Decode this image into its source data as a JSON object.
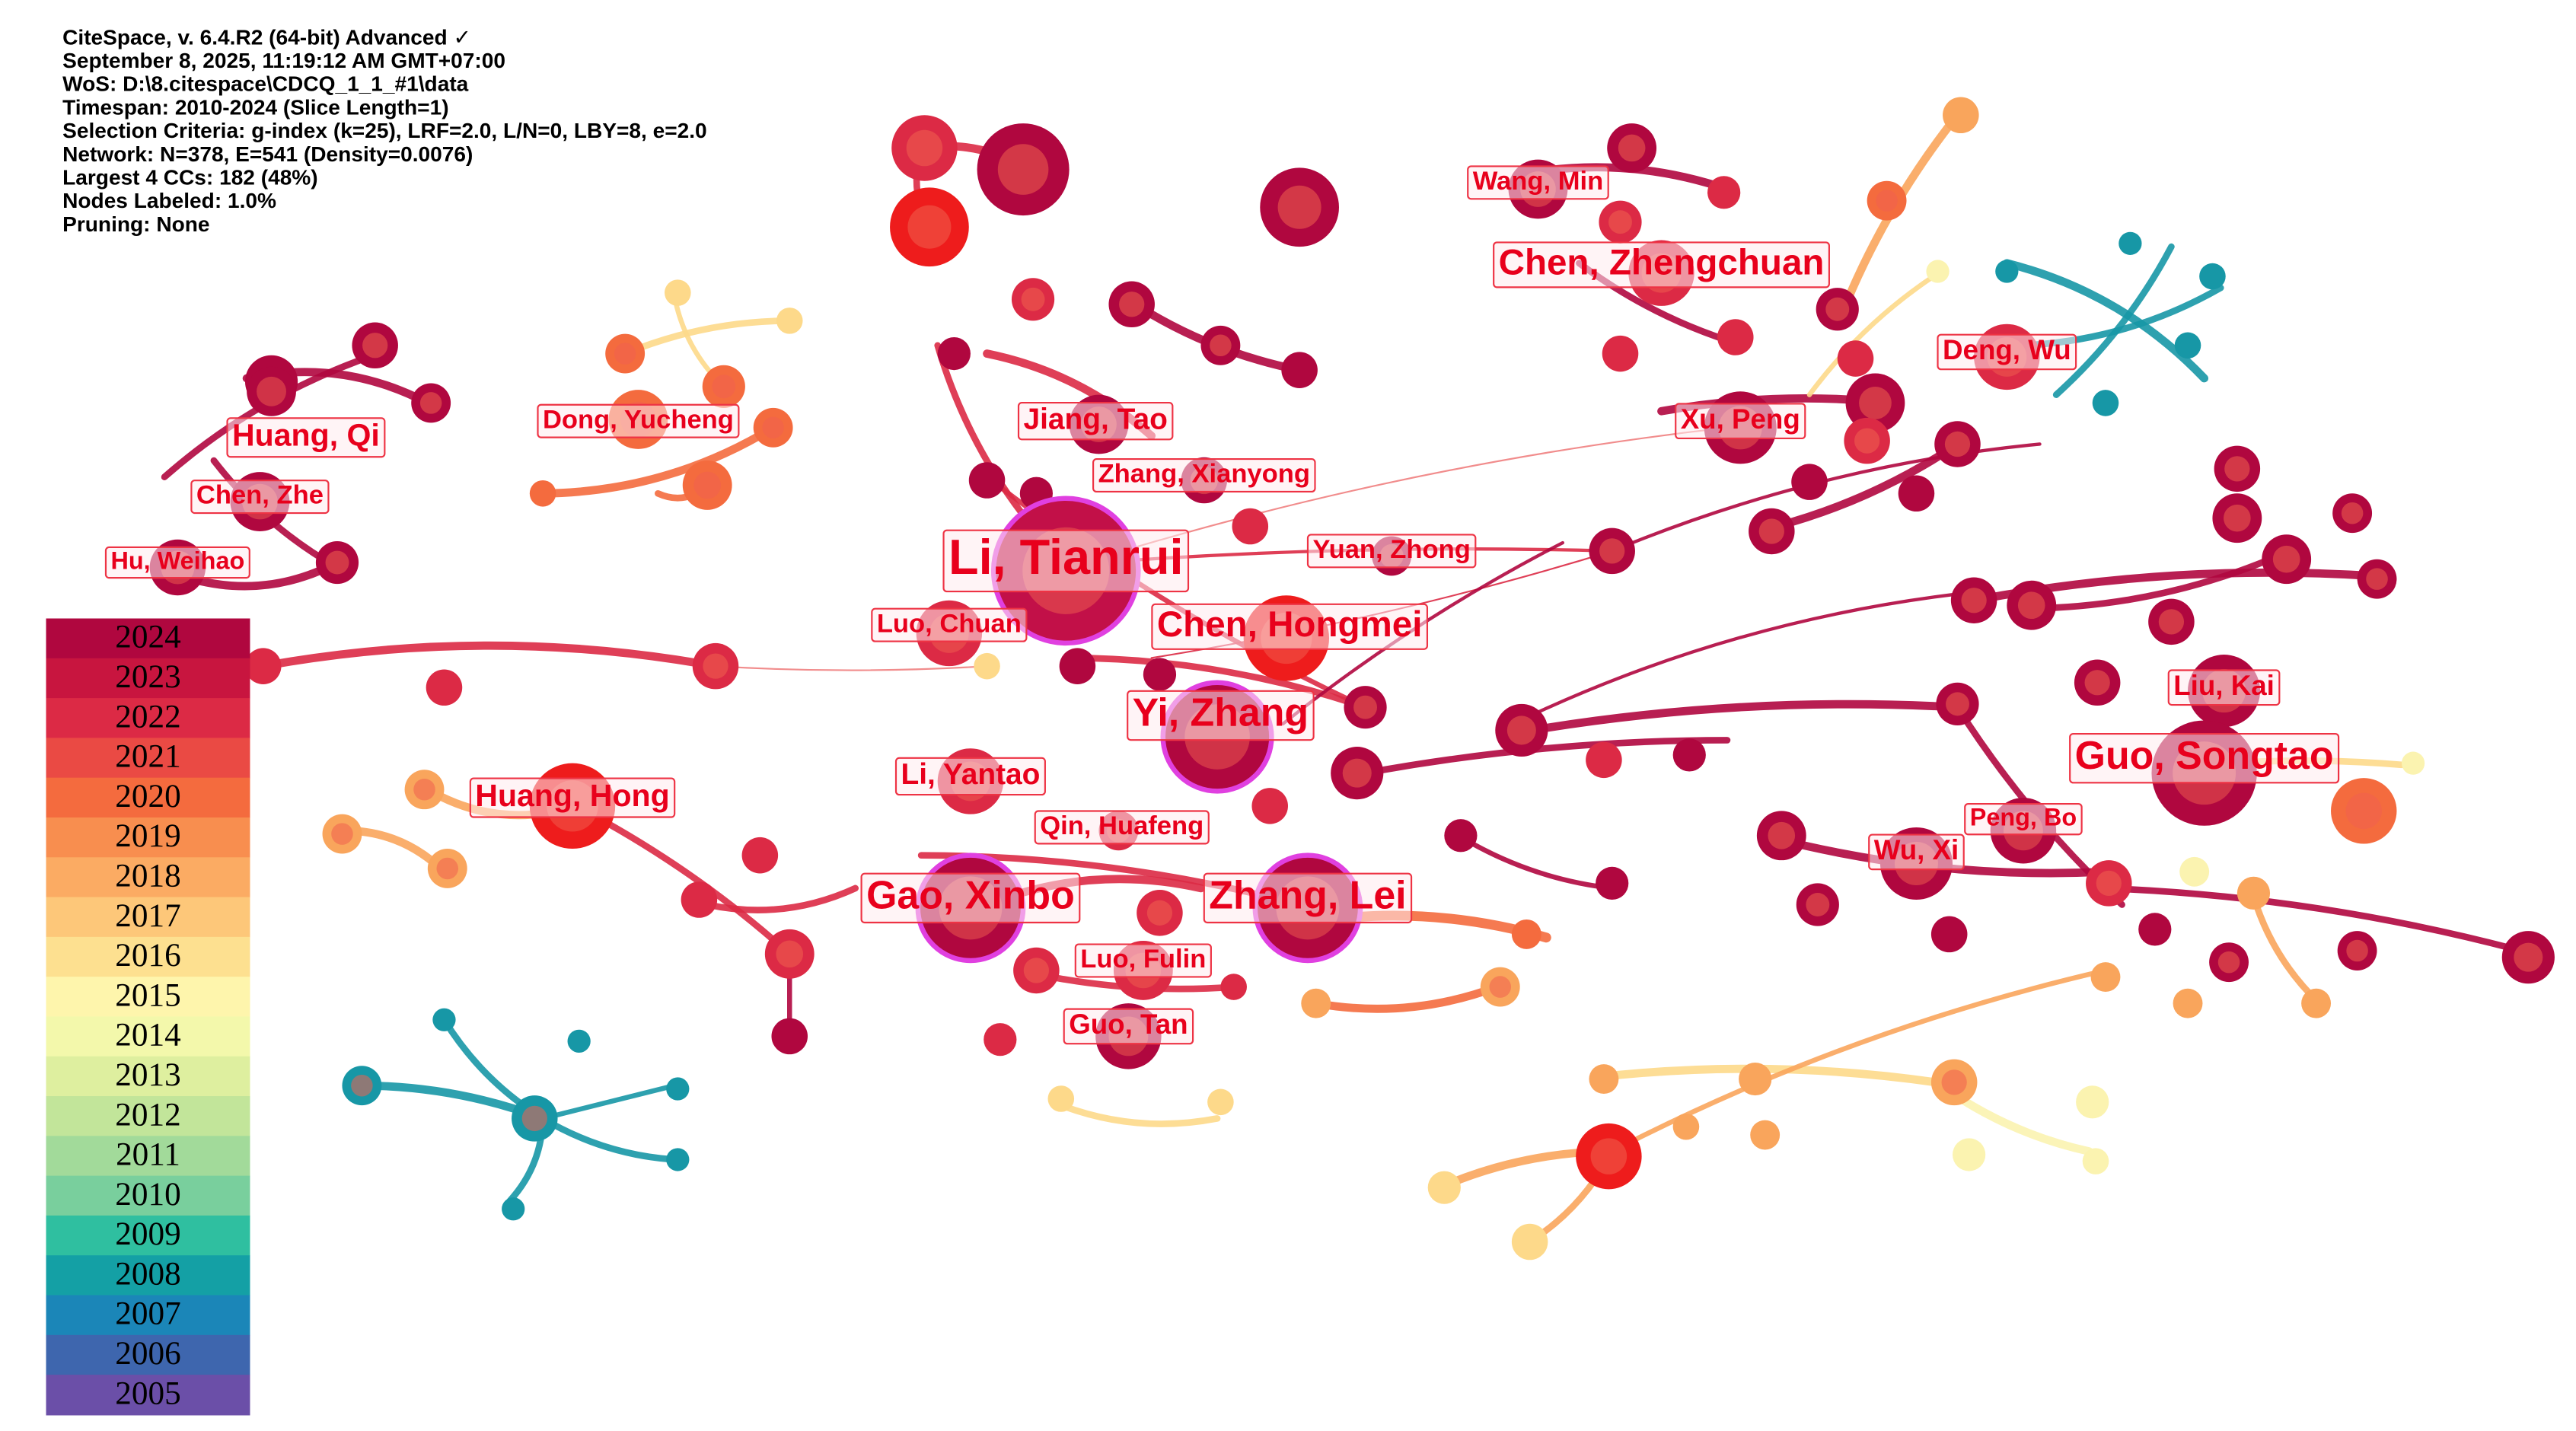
{
  "header": {
    "lines": [
      "CiteSpace, v. 6.4.R2 (64-bit) Advanced ✓",
      "September 8, 2025, 11:19:12 AM GMT+07:00",
      "WoS: D:\\8.citespace\\CDCQ_1_1_#1\\data",
      "Timespan: 2010-2024 (Slice Length=1)",
      "Selection Criteria: g-index (k=25), LRF=2.0, L/N=0, LBY=8, e=2.0",
      "Network: N=378, E=541 (Density=0.0076)",
      "Largest 4 CCs: 182 (48%)",
      "Nodes Labeled: 1.0%",
      "Pruning: None"
    ]
  },
  "legend": {
    "years": [
      {
        "label": "2024",
        "color": "#b0073f"
      },
      {
        "label": "2023",
        "color": "#c8153f"
      },
      {
        "label": "2022",
        "color": "#dc2a45"
      },
      {
        "label": "2021",
        "color": "#ea4a44"
      },
      {
        "label": "2020",
        "color": "#f46b3e"
      },
      {
        "label": "2019",
        "color": "#f88e4f"
      },
      {
        "label": "2018",
        "color": "#fbab63"
      },
      {
        "label": "2017",
        "color": "#fdc779"
      },
      {
        "label": "2016",
        "color": "#fde090"
      },
      {
        "label": "2015",
        "color": "#fef5ac"
      },
      {
        "label": "2014",
        "color": "#f3f8ab"
      },
      {
        "label": "2013",
        "color": "#deef9f"
      },
      {
        "label": "2012",
        "color": "#c2e59a"
      },
      {
        "label": "2011",
        "color": "#a2da9a"
      },
      {
        "label": "2010",
        "color": "#79cf9d"
      },
      {
        "label": "2009",
        "color": "#2fbfa0"
      },
      {
        "label": "2008",
        "color": "#14a0a5"
      },
      {
        "label": "2007",
        "color": "#1b86b8"
      },
      {
        "label": "2006",
        "color": "#3e66ae"
      },
      {
        "label": "2005",
        "color": "#6b4fa8"
      }
    ]
  },
  "nodes": [
    {
      "label": "Huang, Qi"
    },
    {
      "label": "Chen, Zhe"
    },
    {
      "label": "Hu, Weihao"
    },
    {
      "label": "Dong, Yucheng"
    },
    {
      "label": "Jiang, Tao"
    },
    {
      "label": "Zhang, Xianyong"
    },
    {
      "label": "Li, Tianrui"
    },
    {
      "label": "Yuan, Zhong"
    },
    {
      "label": "Luo, Chuan"
    },
    {
      "label": "Chen, Hongmei"
    },
    {
      "label": "Yi, Zhang"
    },
    {
      "label": "Li, Yantao"
    },
    {
      "label": "Qin, Huafeng"
    },
    {
      "label": "Huang, Hong"
    },
    {
      "label": "Gao, Xinbo"
    },
    {
      "label": "Zhang, Lei"
    },
    {
      "label": "Luo, Fulin"
    },
    {
      "label": "Guo, Tan"
    },
    {
      "label": "Wang, Min"
    },
    {
      "label": "Chen, Zhengchuan"
    },
    {
      "label": "Deng, Wu"
    },
    {
      "label": "Xu, Peng"
    },
    {
      "label": "Liu, Kai"
    },
    {
      "label": "Guo, Songtao"
    },
    {
      "label": "Peng, Bo"
    },
    {
      "label": "Wu, Xi"
    }
  ]
}
